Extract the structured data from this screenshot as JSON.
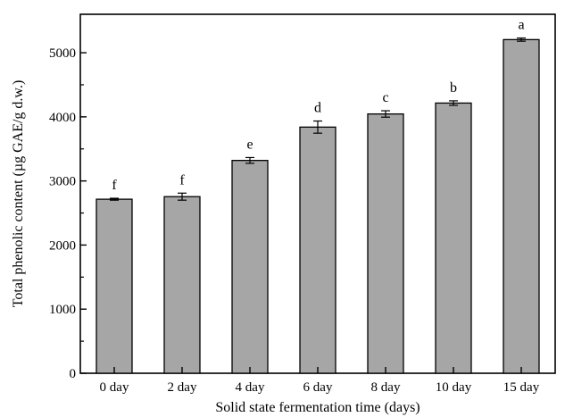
{
  "chart_data": {
    "type": "bar",
    "title": "",
    "xlabel": "Solid state fermentation time (days)",
    "ylabel": "Total phenolic content (µg GAE/g d.w.)",
    "categories": [
      "0 day",
      "2 day",
      "4 day",
      "6 day",
      "8 day",
      "10 day",
      "15 day"
    ],
    "values": [
      2715,
      2755,
      3320,
      3840,
      4045,
      4215,
      5205
    ],
    "errors": [
      15,
      55,
      45,
      95,
      50,
      35,
      25
    ],
    "annotations": [
      "f",
      "f",
      "e",
      "d",
      "c",
      "b",
      "a"
    ],
    "ylim": [
      0,
      5600
    ],
    "yticks": [
      0,
      1000,
      2000,
      3000,
      4000,
      5000
    ],
    "ytick_labels": [
      "0",
      "1000",
      "2000",
      "3000",
      "4000",
      "5000"
    ],
    "grid": false,
    "legend": "none",
    "bar_color": "#a6a6a6",
    "bar_edge_color": "#000000"
  }
}
